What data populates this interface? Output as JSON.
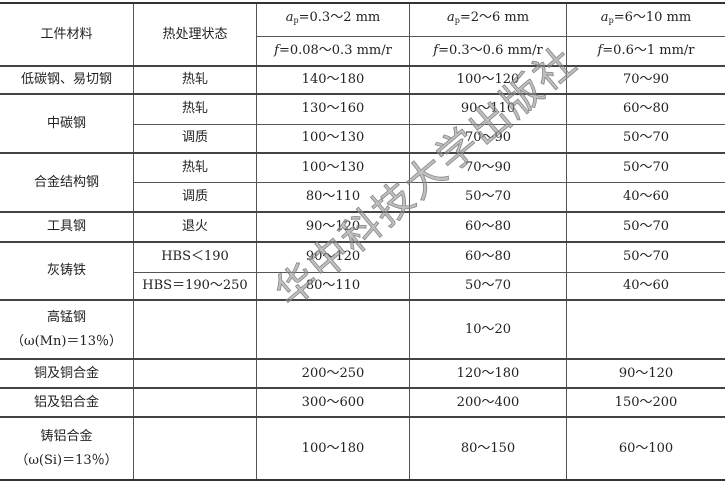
{
  "header": {
    "material": "工件材料",
    "treatment": "热处理状态",
    "depth": [
      {
        "sym": "a",
        "sub": "p",
        "range": "=0.3～2 mm"
      },
      {
        "sym": "a",
        "sub": "p",
        "range": "=2～6 mm"
      },
      {
        "sym": "a",
        "sub": "p",
        "range": "=6～10 mm"
      }
    ],
    "feed": [
      {
        "sym": "f",
        "range": "=0.08～0.3 mm/r"
      },
      {
        "sym": "f",
        "range": "=0.3～0.6 mm/r"
      },
      {
        "sym": "f",
        "range": "=0.6～1 mm/r"
      }
    ]
  },
  "rows": [
    {
      "material": "低碳钢、易切钢",
      "treatment": "热轧",
      "v": [
        "140～180",
        "100～120",
        "70～90"
      ]
    },
    {
      "material": "中碳钢",
      "treatment": "热轧",
      "v": [
        "130～160",
        "90～110",
        "60～80"
      ]
    },
    {
      "treatment": "调质",
      "v": [
        "100～130",
        "70～90",
        "50～70"
      ]
    },
    {
      "material": "合金结构钢",
      "treatment": "热轧",
      "v": [
        "100～130",
        "70～90",
        "50～70"
      ]
    },
    {
      "treatment": "调质",
      "v": [
        "80～110",
        "50～70",
        "40～60"
      ]
    },
    {
      "material": "工具钢",
      "treatment": "退火",
      "v": [
        "90～120",
        "60～80",
        "50～70"
      ]
    },
    {
      "material": "灰铸铁",
      "treatment": "HBS＜190",
      "v": [
        "90～120",
        "60～80",
        "50～70"
      ]
    },
    {
      "treatment": "HBS＝190～250",
      "v": [
        "80～110",
        "50～70",
        "40～60"
      ]
    },
    {
      "material": "高锰钢",
      "material2": "（ω(Mn)＝13％）",
      "treatment": "",
      "v": [
        "",
        "10～20",
        ""
      ]
    },
    {
      "material": "铜及铜合金",
      "treatment": "",
      "v": [
        "200～250",
        "120～180",
        "90～120"
      ]
    },
    {
      "material": "铝及铝合金",
      "treatment": "",
      "v": [
        "300～600",
        "200～400",
        "150～200"
      ]
    },
    {
      "material": "铸铝合金",
      "material2": "（ω(Si)＝13％）",
      "treatment": "",
      "v": [
        "100～180",
        "80～150",
        "60～100"
      ]
    }
  ],
  "watermark": "华中科技大学出版社"
}
